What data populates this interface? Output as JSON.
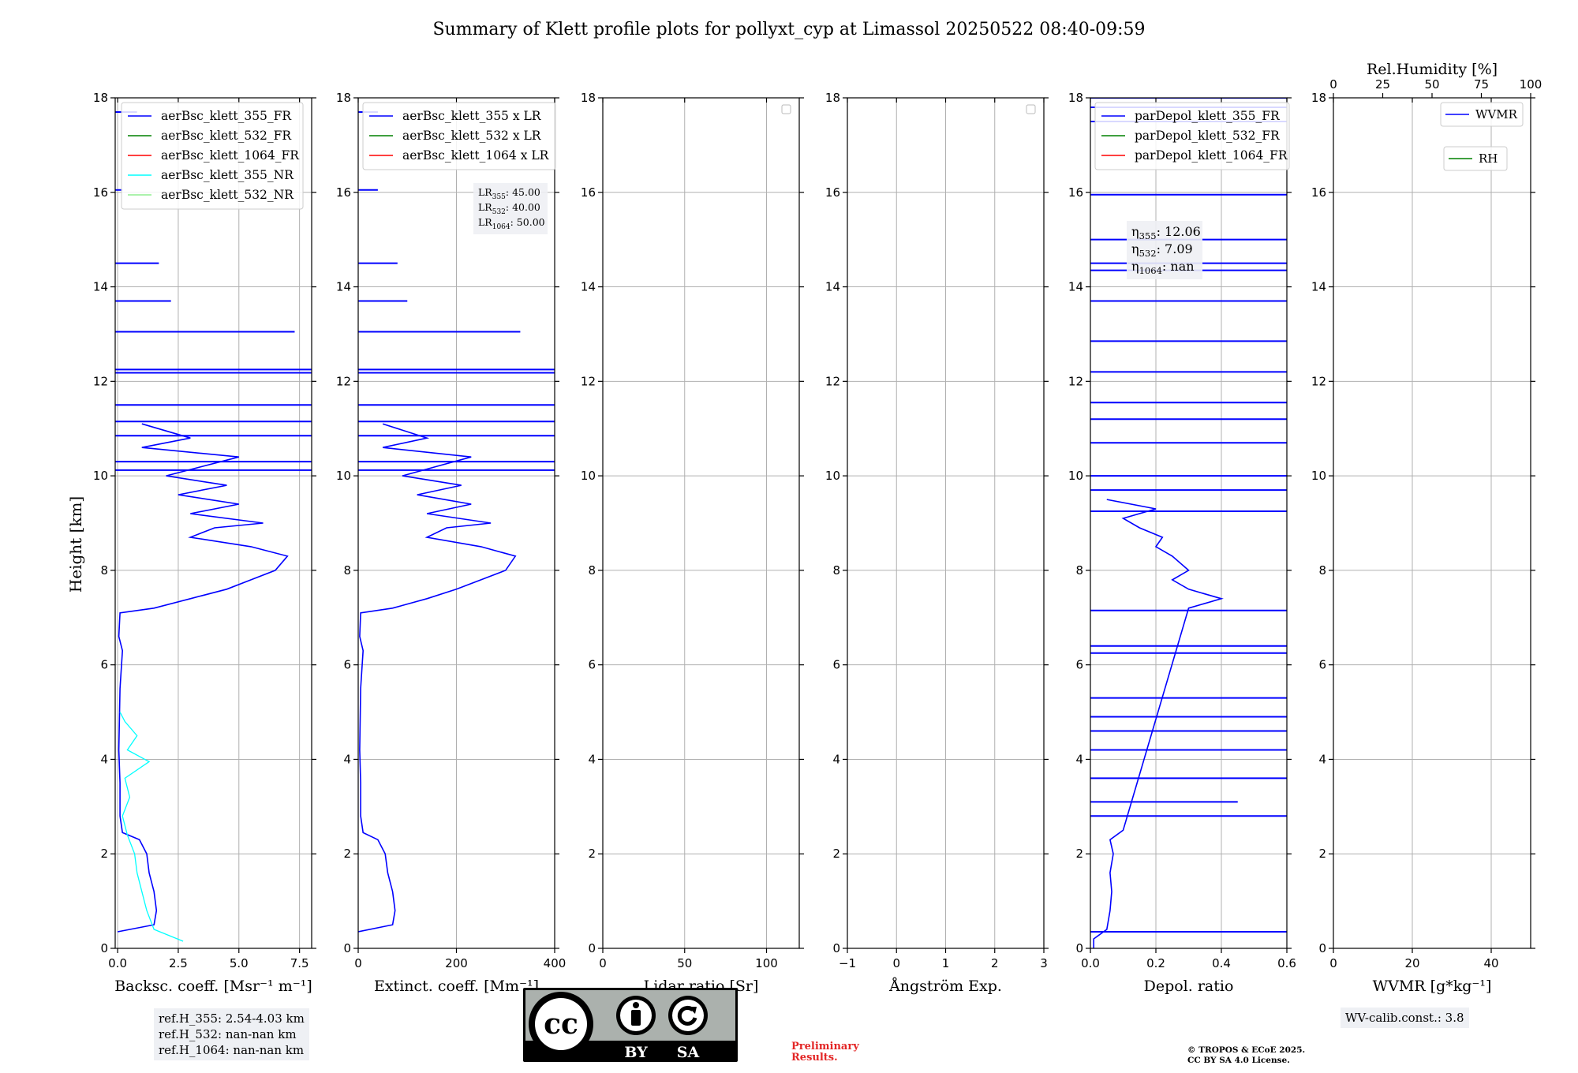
{
  "title": "Summary of Klett profile plots for pollyxt_cyp at Limassol 20250522 08:40-09:59",
  "ylabel": "Height [km]",
  "colors": {
    "blue": "#0000ff",
    "green": "#008000",
    "red": "#ff0000",
    "cyan": "#00ffff",
    "lightgreen": "#90ee90",
    "grid": "#b0b0b0"
  },
  "chart_data": [
    {
      "type": "line",
      "xlabel": "Backsc. coeff. [Msr⁻¹ m⁻¹]",
      "xlim": [
        -0.1,
        8.0
      ],
      "xticks": [
        0.0,
        2.5,
        5.0,
        7.5
      ],
      "xtick_labels": [
        "0.0",
        "2.5",
        "5.0",
        "7.5"
      ],
      "ylim": [
        0,
        18
      ],
      "yticks": [
        0,
        2,
        4,
        6,
        8,
        10,
        12,
        14,
        16,
        18
      ],
      "legend": [
        "aerBsc_klett_355_FR",
        "aerBsc_klett_532_FR",
        "aerBsc_klett_1064_FR",
        "aerBsc_klett_355_NR",
        "aerBsc_klett_532_NR"
      ],
      "legend_colors": [
        "#0000ff",
        "#008000",
        "#ff0000",
        "#00ffff",
        "#90ee90"
      ],
      "series": [
        {
          "name": "aerBsc_klett_355_FR",
          "points": [
            [
              0,
              0.35
            ],
            [
              1.5,
              0.5
            ],
            [
              1.6,
              0.8
            ],
            [
              1.5,
              1.2
            ],
            [
              1.3,
              1.6
            ],
            [
              1.2,
              2.0
            ],
            [
              0.9,
              2.3
            ],
            [
              0.2,
              2.45
            ],
            [
              0.1,
              2.8
            ],
            [
              0.1,
              3.5
            ],
            [
              0.05,
              4.2
            ],
            [
              0.1,
              5.5
            ],
            [
              0.2,
              6.3
            ],
            [
              0.05,
              6.6
            ],
            [
              0.1,
              7.1
            ],
            [
              1.5,
              7.2
            ],
            [
              3.0,
              7.4
            ],
            [
              4.5,
              7.6
            ],
            [
              5.5,
              7.8
            ],
            [
              6.5,
              8.0
            ],
            [
              7.0,
              8.3
            ],
            [
              5.5,
              8.5
            ],
            [
              3.0,
              8.7
            ],
            [
              4.0,
              8.9
            ],
            [
              6.0,
              9.0
            ],
            [
              3.0,
              9.2
            ],
            [
              5.0,
              9.4
            ],
            [
              2.5,
              9.6
            ],
            [
              4.5,
              9.8
            ],
            [
              2.0,
              10.0
            ],
            [
              3.5,
              10.2
            ],
            [
              5.0,
              10.4
            ],
            [
              1.0,
              10.6
            ],
            [
              3.0,
              10.8
            ],
            [
              1.0,
              11.1
            ]
          ]
        },
        {
          "name": "aerBsc_klett_355_NR",
          "points": [
            [
              2.7,
              0.15
            ],
            [
              1.5,
              0.4
            ],
            [
              1.2,
              0.8
            ],
            [
              1.0,
              1.2
            ],
            [
              0.8,
              1.6
            ],
            [
              0.7,
              2.0
            ],
            [
              0.4,
              2.4
            ],
            [
              0.2,
              2.8
            ],
            [
              0.5,
              3.2
            ],
            [
              0.3,
              3.6
            ],
            [
              1.3,
              3.95
            ],
            [
              0.4,
              4.2
            ],
            [
              0.8,
              4.5
            ],
            [
              0.3,
              4.8
            ],
            [
              0.1,
              5.0
            ]
          ]
        }
      ],
      "spikes": [
        [
          12.25,
          8.0
        ],
        [
          12.18,
          8.0
        ],
        [
          13.05,
          7.3
        ],
        [
          13.7,
          2.2
        ],
        [
          14.5,
          1.7
        ],
        [
          16.05,
          0.2
        ],
        [
          17.7,
          0.8
        ],
        [
          11.5,
          8.0
        ],
        [
          11.15,
          8.0
        ],
        [
          10.85,
          8.0
        ],
        [
          10.3,
          8.0
        ],
        [
          10.12,
          8.0
        ]
      ]
    },
    {
      "type": "line",
      "xlabel": "Extinct. coeff. [Mm⁻¹]",
      "xlim": [
        0,
        400
      ],
      "xticks": [
        0,
        200,
        400
      ],
      "xtick_labels": [
        "0",
        "200",
        "400"
      ],
      "ylim": [
        0,
        18
      ],
      "yticks": [
        0,
        2,
        4,
        6,
        8,
        10,
        12,
        14,
        16,
        18
      ],
      "legend": [
        "aerBsc_klett_355 x LR",
        "aerBsc_klett_532 x LR",
        "aerBsc_klett_1064 x LR"
      ],
      "legend_colors": [
        "#0000ff",
        "#008000",
        "#ff0000"
      ],
      "annotation": [
        "LR355: 45.00",
        "LR532: 40.00",
        "LR1064: 50.00"
      ],
      "series": [
        {
          "name": "aerBsc_klett_355 x LR",
          "points": [
            [
              0,
              0.35
            ],
            [
              70,
              0.5
            ],
            [
              75,
              0.8
            ],
            [
              70,
              1.2
            ],
            [
              60,
              1.6
            ],
            [
              55,
              2.0
            ],
            [
              40,
              2.3
            ],
            [
              10,
              2.45
            ],
            [
              5,
              2.8
            ],
            [
              5,
              3.5
            ],
            [
              3,
              4.2
            ],
            [
              5,
              5.5
            ],
            [
              10,
              6.3
            ],
            [
              3,
              6.6
            ],
            [
              5,
              7.1
            ],
            [
              70,
              7.2
            ],
            [
              140,
              7.4
            ],
            [
              200,
              7.6
            ],
            [
              250,
              7.8
            ],
            [
              300,
              8.0
            ],
            [
              320,
              8.3
            ],
            [
              250,
              8.5
            ],
            [
              140,
              8.7
            ],
            [
              180,
              8.9
            ],
            [
              270,
              9.0
            ],
            [
              140,
              9.2
            ],
            [
              230,
              9.4
            ],
            [
              120,
              9.6
            ],
            [
              210,
              9.8
            ],
            [
              90,
              10.0
            ],
            [
              160,
              10.2
            ],
            [
              230,
              10.4
            ],
            [
              50,
              10.6
            ],
            [
              140,
              10.8
            ],
            [
              50,
              11.1
            ]
          ]
        }
      ],
      "spikes": [
        [
          12.25,
          400
        ],
        [
          12.18,
          400
        ],
        [
          13.05,
          330
        ],
        [
          13.7,
          100
        ],
        [
          14.5,
          80
        ],
        [
          16.05,
          40
        ],
        [
          17.7,
          40
        ],
        [
          11.5,
          400
        ],
        [
          11.15,
          400
        ],
        [
          10.85,
          400
        ],
        [
          10.3,
          400
        ],
        [
          10.12,
          400
        ]
      ]
    },
    {
      "type": "line",
      "xlabel": "Lidar ratio [Sr]",
      "xlim": [
        0,
        120
      ],
      "xticks": [
        0,
        50,
        100
      ],
      "xtick_labels": [
        "0",
        "50",
        "100"
      ],
      "ylim": [
        0,
        18
      ],
      "yticks": [
        0,
        2,
        4,
        6,
        8,
        10,
        12,
        14,
        16,
        18
      ],
      "series": []
    },
    {
      "type": "line",
      "xlabel": "Ångström Exp.",
      "xlim": [
        -1,
        3
      ],
      "xticks": [
        -1,
        0,
        1,
        2,
        3
      ],
      "xtick_labels": [
        "−1",
        "0",
        "1",
        "2",
        "3"
      ],
      "ylim": [
        0,
        18
      ],
      "yticks": [
        0,
        2,
        4,
        6,
        8,
        10,
        12,
        14,
        16,
        18
      ],
      "series": []
    },
    {
      "type": "line",
      "xlabel": "Depol. ratio",
      "xlim": [
        0,
        0.6
      ],
      "xticks": [
        0.0,
        0.2,
        0.4,
        0.6
      ],
      "xtick_labels": [
        "0.0",
        "0.2",
        "0.4",
        "0.6"
      ],
      "ylim": [
        0,
        18
      ],
      "yticks": [
        0,
        2,
        4,
        6,
        8,
        10,
        12,
        14,
        16,
        18
      ],
      "legend": [
        "parDepol_klett_355_FR",
        "parDepol_klett_532_FR",
        "parDepol_klett_1064_FR"
      ],
      "legend_colors": [
        "#0000ff",
        "#008000",
        "#ff0000"
      ],
      "annotation": [
        "η355: 12.06",
        "η532: 7.09",
        "η1064: nan"
      ],
      "series": [
        {
          "name": "parDepol_klett_355_FR",
          "points": [
            [
              0.01,
              0.0
            ],
            [
              0.01,
              0.2
            ],
            [
              0.05,
              0.4
            ],
            [
              0.06,
              0.8
            ],
            [
              0.065,
              1.2
            ],
            [
              0.06,
              1.6
            ],
            [
              0.07,
              2.0
            ],
            [
              0.06,
              2.3
            ],
            [
              0.1,
              2.5
            ],
            [
              0.3,
              7.2
            ],
            [
              0.4,
              7.4
            ],
            [
              0.3,
              7.6
            ],
            [
              0.25,
              7.8
            ],
            [
              0.3,
              8.0
            ],
            [
              0.25,
              8.3
            ],
            [
              0.2,
              8.5
            ],
            [
              0.22,
              8.7
            ],
            [
              0.15,
              8.9
            ],
            [
              0.1,
              9.1
            ],
            [
              0.2,
              9.3
            ],
            [
              0.05,
              9.5
            ]
          ]
        }
      ],
      "spikes": [
        [
          0.35,
          0.6
        ],
        [
          2.8,
          0.6
        ],
        [
          3.1,
          0.45
        ],
        [
          3.6,
          0.6
        ],
        [
          4.2,
          0.6
        ],
        [
          4.6,
          0.6
        ],
        [
          4.9,
          0.6
        ],
        [
          5.3,
          0.6
        ],
        [
          6.25,
          0.6
        ],
        [
          6.4,
          0.6
        ],
        [
          7.15,
          0.6
        ],
        [
          9.25,
          0.6
        ],
        [
          9.7,
          0.6
        ],
        [
          10.0,
          0.6
        ],
        [
          10.7,
          0.6
        ],
        [
          11.2,
          0.6
        ],
        [
          11.55,
          0.6
        ],
        [
          12.2,
          0.6
        ],
        [
          12.85,
          0.6
        ],
        [
          13.7,
          0.6
        ],
        [
          14.35,
          0.6
        ],
        [
          14.5,
          0.6
        ],
        [
          15.0,
          0.6
        ],
        [
          15.95,
          0.6
        ],
        [
          17.5,
          0.6
        ],
        [
          17.8,
          0.6
        ],
        [
          18.0,
          0.6
        ]
      ]
    },
    {
      "type": "line",
      "xlabel": "WVMR [g*kg⁻¹]",
      "xlim": [
        0,
        50
      ],
      "xticks": [
        0,
        20,
        40
      ],
      "xtick_labels": [
        "0",
        "20",
        "40"
      ],
      "ylim": [
        0,
        18
      ],
      "yticks": [
        0,
        2,
        4,
        6,
        8,
        10,
        12,
        14,
        16,
        18
      ],
      "x2label": "Rel.Humidity [%]",
      "x2lim": [
        0,
        100
      ],
      "x2ticks": [
        0,
        25,
        50,
        75,
        100
      ],
      "x2tick_labels": [
        "0",
        "25",
        "50",
        "75",
        "100"
      ],
      "legend": [
        "WVMR",
        "RH"
      ],
      "legend_colors": [
        "#0000ff",
        "#008000"
      ],
      "series": []
    }
  ],
  "info": {
    "ref_lines": [
      "ref.H_355: 2.54-4.03 km",
      "ref.H_532: nan-nan km",
      "ref.H_1064: nan-nan km"
    ],
    "wv_calib": "WV-calib.const.: 3.8",
    "prelim": [
      "Preliminary",
      "Results."
    ],
    "copyright": [
      "© TROPOS & ECoE 2025.",
      "CC BY SA 4.0 License."
    ],
    "license": {
      "main": "cc",
      "by": "BY",
      "sa": "SA"
    }
  }
}
